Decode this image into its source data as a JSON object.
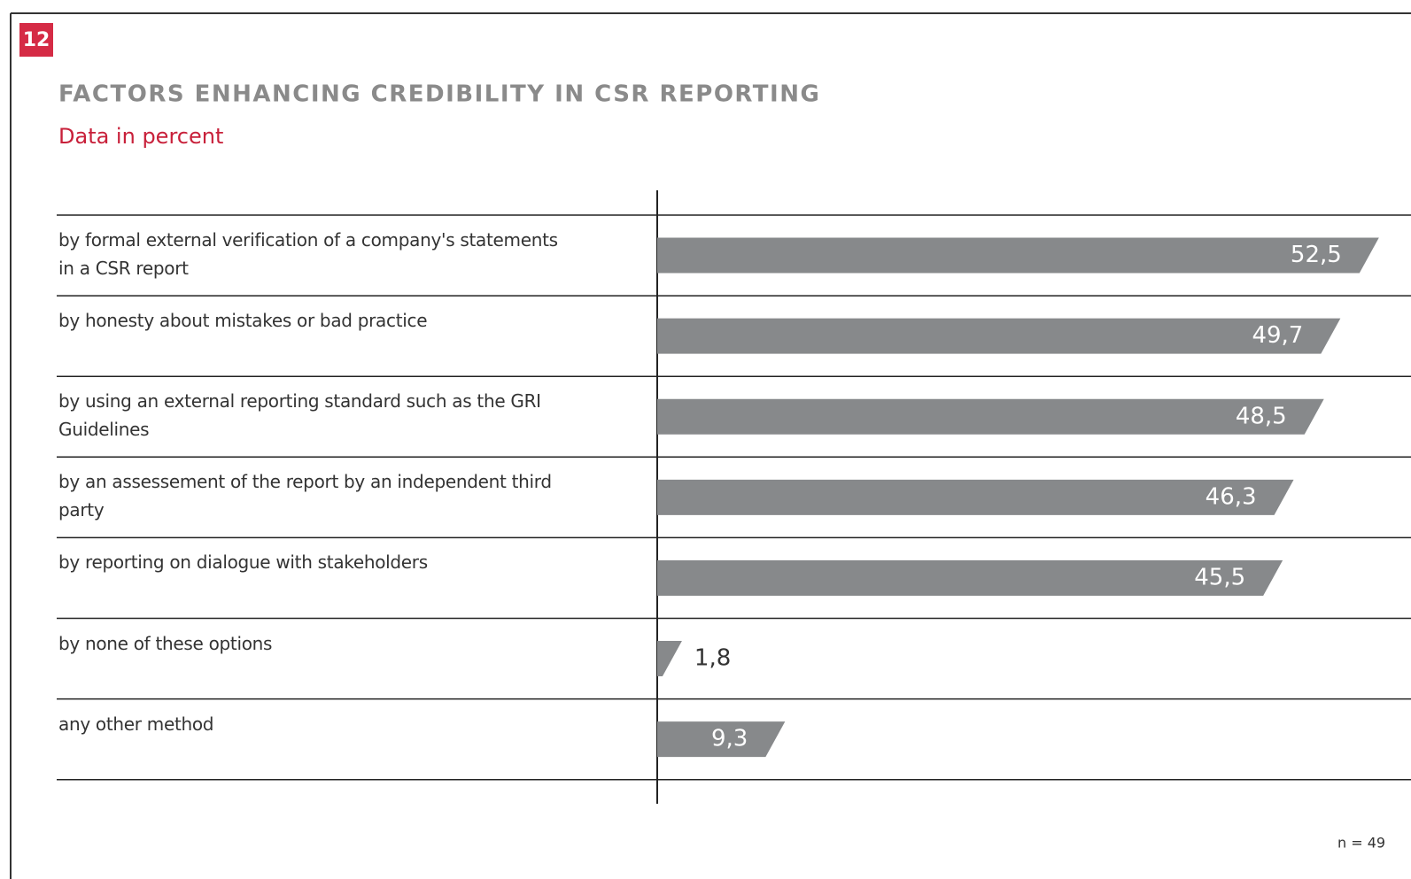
{
  "chart_data": {
    "type": "bar",
    "badge": "12",
    "title": "FACTORS ENHANCING CREDIBILITY IN CSR REPORTING",
    "subtitle": "Data in percent",
    "note": "n = 49",
    "categories": [
      "by formal external verification of a company's statements in a CSR report",
      "by honesty about mistakes or bad practice",
      "by using an external reporting standard such as the GRI Guidelines",
      "by an assessement of the report by an independent third party",
      "by reporting on dialogue with stakeholders",
      "by none of these options",
      "any other method"
    ],
    "values": [
      52.5,
      49.7,
      48.5,
      46.3,
      45.5,
      1.8,
      9.3
    ],
    "value_labels": [
      "52,5",
      "49,7",
      "48,5",
      "46,3",
      "45,5",
      "1,8",
      "9,3"
    ],
    "color": "#87898b"
  }
}
